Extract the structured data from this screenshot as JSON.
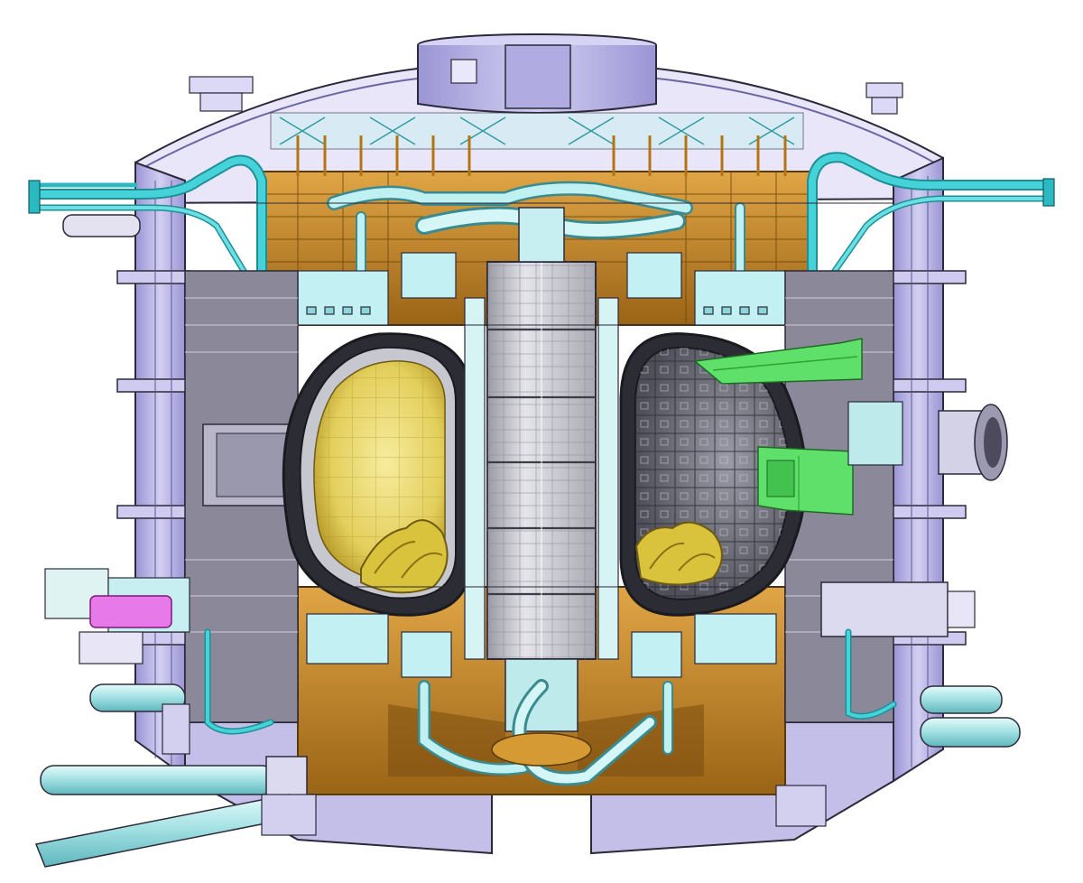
{
  "image": {
    "subject": "tokamak-cutaway",
    "palette": {
      "background": "#ffffff",
      "cryostat": "#b9b4e6",
      "cryostat_dark": "#8e88c8",
      "steel_grey": "#8c8a9c",
      "copper": "#c98a2a",
      "copper_dark": "#8a5a12",
      "coolant_cyan": "#39c9cf",
      "pipe_light_cyan": "#bfeff0",
      "central_solenoid": "#c9c9cf",
      "blanket_yellow": "#e6d46a",
      "divertor_yellow": "#d9c23c",
      "inner_grey": "#6f6f7a",
      "green_module": "#5fe06a",
      "magenta_module": "#e879e8",
      "outline": "#2c2a3a"
    }
  }
}
